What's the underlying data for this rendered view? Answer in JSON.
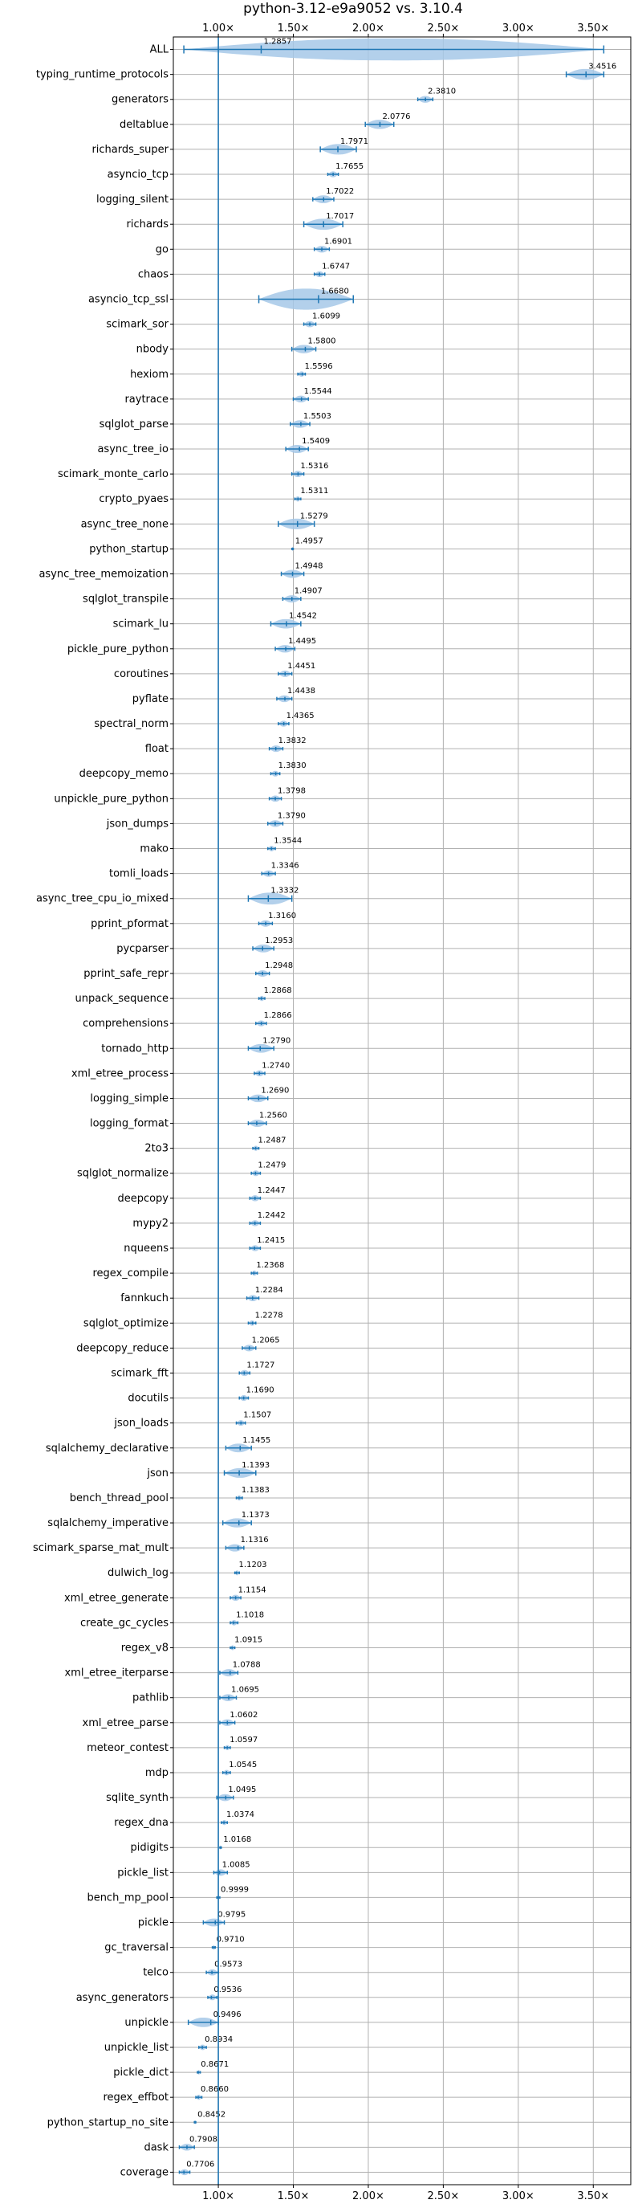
{
  "colors": {
    "stroke": "#1f77b4",
    "violin": "#a6c8e8",
    "grid": "#b0b0b0"
  },
  "chart_data": {
    "type": "violin",
    "title": "python-3.12-e9a9052 vs. 3.10.4",
    "xlabel": "",
    "ylabel": "",
    "xlim": [
      0.7,
      3.75
    ],
    "x_ticks": [
      1.0,
      1.5,
      2.0,
      2.5,
      3.0,
      3.5
    ],
    "x_tick_labels": [
      "1.00×",
      "1.50×",
      "2.00×",
      "2.50×",
      "3.00×",
      "3.50×"
    ],
    "reference_line": 1.0,
    "grid": true,
    "ticks_top_and_bottom": true,
    "categories": [
      "ALL",
      "typing_runtime_protocols",
      "generators",
      "deltablue",
      "richards_super",
      "asyncio_tcp",
      "logging_silent",
      "richards",
      "go",
      "chaos",
      "asyncio_tcp_ssl",
      "scimark_sor",
      "nbody",
      "hexiom",
      "raytrace",
      "sqlglot_parse",
      "async_tree_io",
      "scimark_monte_carlo",
      "crypto_pyaes",
      "async_tree_none",
      "python_startup",
      "async_tree_memoization",
      "sqlglot_transpile",
      "scimark_lu",
      "pickle_pure_python",
      "coroutines",
      "pyflate",
      "spectral_norm",
      "float",
      "deepcopy_memo",
      "unpickle_pure_python",
      "json_dumps",
      "mako",
      "tomli_loads",
      "async_tree_cpu_io_mixed",
      "pprint_pformat",
      "pycparser",
      "pprint_safe_repr",
      "unpack_sequence",
      "comprehensions",
      "tornado_http",
      "xml_etree_process",
      "logging_simple",
      "logging_format",
      "2to3",
      "sqlglot_normalize",
      "deepcopy",
      "mypy2",
      "nqueens",
      "regex_compile",
      "fannkuch",
      "sqlglot_optimize",
      "deepcopy_reduce",
      "scimark_fft",
      "docutils",
      "json_loads",
      "sqlalchemy_declarative",
      "json",
      "bench_thread_pool",
      "sqlalchemy_imperative",
      "scimark_sparse_mat_mult",
      "dulwich_log",
      "xml_etree_generate",
      "create_gc_cycles",
      "regex_v8",
      "xml_etree_iterparse",
      "pathlib",
      "xml_etree_parse",
      "meteor_contest",
      "mdp",
      "sqlite_synth",
      "regex_dna",
      "pidigits",
      "pickle_list",
      "bench_mp_pool",
      "pickle",
      "gc_traversal",
      "telco",
      "async_generators",
      "unpickle",
      "unpickle_list",
      "pickle_dict",
      "regex_effbot",
      "python_startup_no_site",
      "dask",
      "coverage"
    ],
    "values": [
      1.2857,
      3.4516,
      2.381,
      2.0776,
      1.7971,
      1.7655,
      1.7022,
      1.7017,
      1.6901,
      1.6747,
      1.668,
      1.6099,
      1.58,
      1.5596,
      1.5544,
      1.5503,
      1.5409,
      1.5316,
      1.5311,
      1.5279,
      1.4957,
      1.4948,
      1.4907,
      1.4542,
      1.4495,
      1.4451,
      1.4438,
      1.4365,
      1.3832,
      1.383,
      1.3798,
      1.379,
      1.3544,
      1.3346,
      1.3332,
      1.316,
      1.2953,
      1.2948,
      1.2868,
      1.2866,
      1.279,
      1.274,
      1.269,
      1.256,
      1.2487,
      1.2479,
      1.2447,
      1.2442,
      1.2415,
      1.2368,
      1.2284,
      1.2278,
      1.2065,
      1.1727,
      1.169,
      1.1507,
      1.1455,
      1.1393,
      1.1383,
      1.1373,
      1.1316,
      1.1203,
      1.1154,
      1.1018,
      1.0915,
      1.0788,
      1.0695,
      1.0602,
      1.0597,
      1.0545,
      1.0495,
      1.0374,
      1.0168,
      1.0085,
      0.9999,
      0.9795,
      0.971,
      0.9573,
      0.9536,
      0.9496,
      0.8934,
      0.8671,
      0.866,
      0.8452,
      0.7908,
      0.7706
    ],
    "value_labels": [
      "1.2857",
      "3.4516",
      "2.3810",
      "2.0776",
      "1.7971",
      "1.7655",
      "1.7022",
      "1.7017",
      "1.6901",
      "1.6747",
      "1.6680",
      "1.6099",
      "1.5800",
      "1.5596",
      "1.5544",
      "1.5503",
      "1.5409",
      "1.5316",
      "1.5311",
      "1.5279",
      "1.4957",
      "1.4948",
      "1.4907",
      "1.4542",
      "1.4495",
      "1.4451",
      "1.4438",
      "1.4365",
      "1.3832",
      "1.3830",
      "1.3798",
      "1.3790",
      "1.3544",
      "1.3346",
      "1.3332",
      "1.3160",
      "1.2953",
      "1.2948",
      "1.2868",
      "1.2866",
      "1.2790",
      "1.2740",
      "1.2690",
      "1.2560",
      "1.2487",
      "1.2479",
      "1.2447",
      "1.2442",
      "1.2415",
      "1.2368",
      "1.2284",
      "1.2278",
      "1.2065",
      "1.1727",
      "1.1690",
      "1.1507",
      "1.1455",
      "1.1393",
      "1.1383",
      "1.1373",
      "1.1316",
      "1.1203",
      "1.1154",
      "1.1018",
      "1.0915",
      "1.0788",
      "1.0695",
      "1.0602",
      "1.0597",
      "1.0545",
      "1.0495",
      "1.0374",
      "1.0168",
      "1.0085",
      "0.9999",
      "0.9795",
      "0.9710",
      "0.9573",
      "0.9536",
      "0.9496",
      "0.8934",
      "0.8671",
      "0.8660",
      "0.8452",
      "0.7908",
      "0.7706"
    ],
    "ranges": [
      [
        0.77,
        3.57
      ],
      [
        3.32,
        3.57
      ],
      [
        2.33,
        2.43
      ],
      [
        1.98,
        2.17
      ],
      [
        1.68,
        1.92
      ],
      [
        1.73,
        1.8
      ],
      [
        1.63,
        1.77
      ],
      [
        1.57,
        1.83
      ],
      [
        1.64,
        1.74
      ],
      [
        1.64,
        1.71
      ],
      [
        1.27,
        1.9
      ],
      [
        1.57,
        1.65
      ],
      [
        1.49,
        1.65
      ],
      [
        1.53,
        1.58
      ],
      [
        1.5,
        1.6
      ],
      [
        1.48,
        1.61
      ],
      [
        1.45,
        1.6
      ],
      [
        1.49,
        1.57
      ],
      [
        1.51,
        1.55
      ],
      [
        1.4,
        1.64
      ],
      [
        1.49,
        1.5
      ],
      [
        1.42,
        1.57
      ],
      [
        1.43,
        1.55
      ],
      [
        1.35,
        1.55
      ],
      [
        1.38,
        1.51
      ],
      [
        1.4,
        1.49
      ],
      [
        1.39,
        1.49
      ],
      [
        1.4,
        1.47
      ],
      [
        1.34,
        1.43
      ],
      [
        1.35,
        1.41
      ],
      [
        1.34,
        1.42
      ],
      [
        1.33,
        1.43
      ],
      [
        1.33,
        1.38
      ],
      [
        1.29,
        1.38
      ],
      [
        1.2,
        1.49
      ],
      [
        1.27,
        1.36
      ],
      [
        1.23,
        1.37
      ],
      [
        1.25,
        1.34
      ],
      [
        1.27,
        1.31
      ],
      [
        1.25,
        1.32
      ],
      [
        1.2,
        1.37
      ],
      [
        1.24,
        1.31
      ],
      [
        1.2,
        1.33
      ],
      [
        1.2,
        1.32
      ],
      [
        1.23,
        1.27
      ],
      [
        1.22,
        1.28
      ],
      [
        1.21,
        1.28
      ],
      [
        1.21,
        1.28
      ],
      [
        1.21,
        1.28
      ],
      [
        1.22,
        1.26
      ],
      [
        1.19,
        1.27
      ],
      [
        1.2,
        1.25
      ],
      [
        1.16,
        1.25
      ],
      [
        1.14,
        1.21
      ],
      [
        1.14,
        1.2
      ],
      [
        1.12,
        1.18
      ],
      [
        1.05,
        1.22
      ],
      [
        1.04,
        1.25
      ],
      [
        1.12,
        1.16
      ],
      [
        1.03,
        1.22
      ],
      [
        1.05,
        1.17
      ],
      [
        1.11,
        1.14
      ],
      [
        1.08,
        1.15
      ],
      [
        1.08,
        1.13
      ],
      [
        1.08,
        1.11
      ],
      [
        1.01,
        1.13
      ],
      [
        1.01,
        1.12
      ],
      [
        1.01,
        1.11
      ],
      [
        1.04,
        1.08
      ],
      [
        1.03,
        1.08
      ],
      [
        0.99,
        1.1
      ],
      [
        1.02,
        1.06
      ],
      [
        1.01,
        1.02
      ],
      [
        0.97,
        1.06
      ],
      [
        0.99,
        1.01
      ],
      [
        0.9,
        1.04
      ],
      [
        0.96,
        0.98
      ],
      [
        0.92,
        1.0
      ],
      [
        0.93,
        0.99
      ],
      [
        0.8,
        1.0
      ],
      [
        0.87,
        0.92
      ],
      [
        0.86,
        0.88
      ],
      [
        0.85,
        0.89
      ],
      [
        0.84,
        0.85
      ],
      [
        0.74,
        0.84
      ],
      [
        0.74,
        0.81
      ]
    ]
  }
}
